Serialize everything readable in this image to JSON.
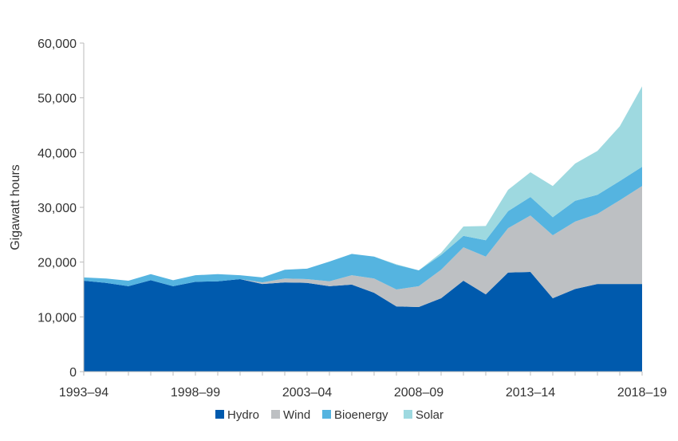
{
  "chart_data": {
    "type": "area",
    "stacked": true,
    "title": "",
    "xlabel": "",
    "ylabel": "Gigawatt hours",
    "ylim": [
      0,
      60000
    ],
    "yticks": [
      "0",
      "10,000",
      "20,000",
      "30,000",
      "40,000",
      "50,000",
      "60,000"
    ],
    "ytick_values": [
      0,
      10000,
      20000,
      30000,
      40000,
      50000,
      60000
    ],
    "xtick_labels": [
      "1993–94",
      "1998–99",
      "2003–04",
      "2008–09",
      "2013–14",
      "2018–19"
    ],
    "categories": [
      "1993–94",
      "1994–95",
      "1995–96",
      "1996–97",
      "1997–98",
      "1998–99",
      "1999–00",
      "2000–01",
      "2001–02",
      "2002–03",
      "2003–04",
      "2004–05",
      "2005–06",
      "2006–07",
      "2007–08",
      "2008–09",
      "2009–10",
      "2010–11",
      "2011–12",
      "2012–13",
      "2013–14",
      "2014–15",
      "2015–16",
      "2016–17",
      "2017–18",
      "2018–19"
    ],
    "grid": false,
    "legend_position": "bottom",
    "series": [
      {
        "name": "Hydro",
        "color": "#005aad",
        "values": [
          16600,
          16200,
          15600,
          16700,
          15600,
          16400,
          16500,
          16900,
          16000,
          16300,
          16200,
          15600,
          15900,
          14400,
          11900,
          11800,
          13400,
          16600,
          14100,
          18100,
          18200,
          13400,
          15100,
          16000,
          16000,
          16000
        ]
      },
      {
        "name": "Wind",
        "color": "#bdc0c3",
        "values": [
          0,
          0,
          0,
          0,
          0,
          0,
          0,
          0,
          300,
          700,
          700,
          900,
          1700,
          2600,
          3100,
          3800,
          5200,
          6100,
          6900,
          8100,
          10300,
          11500,
          12300,
          12800,
          15300,
          17900
        ]
      },
      {
        "name": "Bioenergy",
        "color": "#55b4e0",
        "values": [
          600,
          800,
          1000,
          1100,
          1100,
          1200,
          1300,
          700,
          900,
          1600,
          1900,
          3600,
          3900,
          4000,
          4500,
          2900,
          2700,
          2100,
          3000,
          3100,
          3400,
          3300,
          3800,
          3500,
          3500,
          3500
        ]
      },
      {
        "name": "Solar",
        "color": "#9ed9e0",
        "values": [
          0,
          0,
          0,
          0,
          0,
          0,
          0,
          0,
          0,
          0,
          0,
          0,
          0,
          0,
          100,
          0,
          400,
          1700,
          2600,
          3900,
          4500,
          5700,
          6800,
          8000,
          10000,
          14700
        ]
      }
    ]
  }
}
